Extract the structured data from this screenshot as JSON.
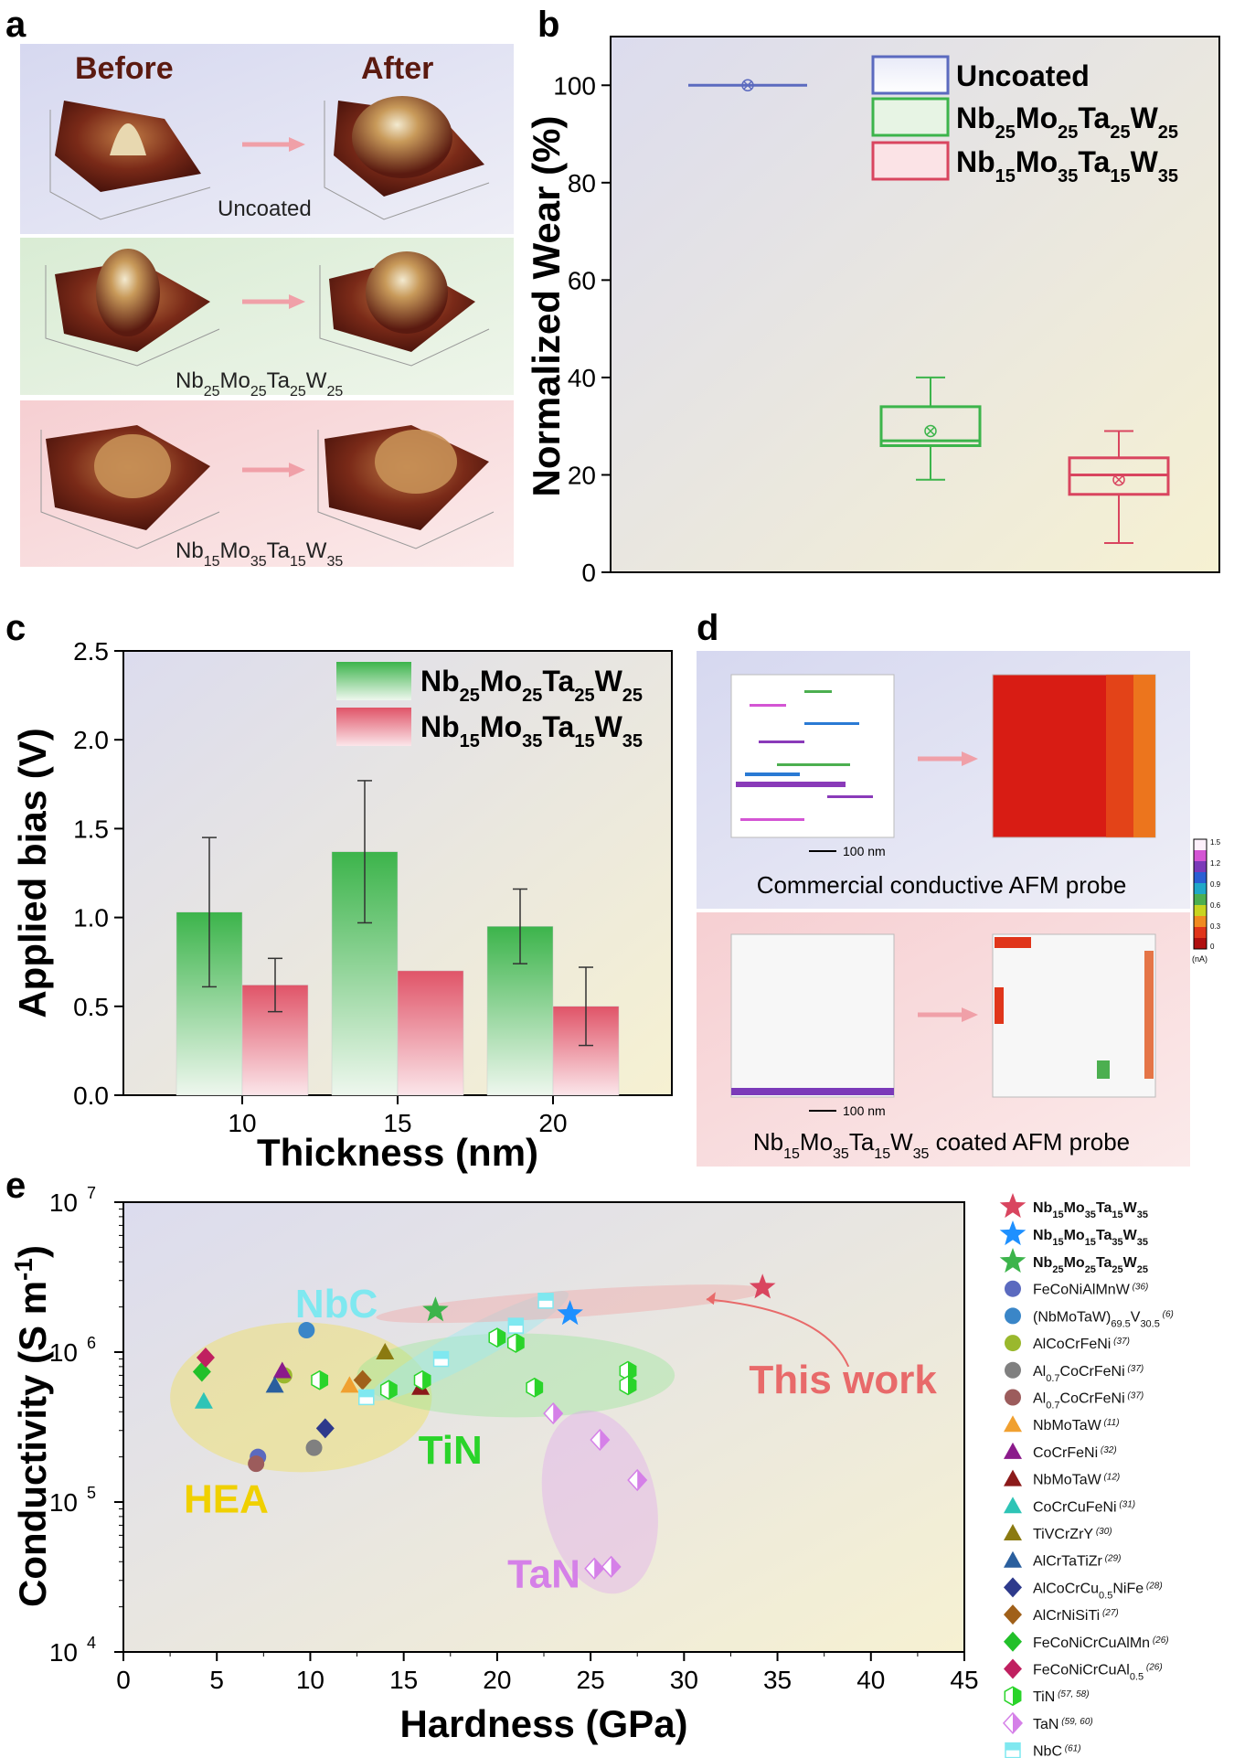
{
  "panels": {
    "a": {
      "label": "a",
      "before": "Before",
      "after": "After",
      "rows": [
        {
          "name": "Uncoated",
          "base": "Uncoated"
        },
        {
          "name": "Nb25Mo25Ta25W25",
          "base": "Nb",
          "parts": [
            [
              "25",
              "Mo"
            ],
            [
              "25",
              "Ta"
            ],
            [
              "25",
              "W"
            ],
            [
              "25",
              ""
            ]
          ]
        },
        {
          "name": "Nb15Mo35Ta15W35",
          "base": "Nb",
          "parts": [
            [
              "15",
              "Mo"
            ],
            [
              "35",
              "Ta"
            ],
            [
              "15",
              "W"
            ],
            [
              "35",
              ""
            ]
          ]
        }
      ]
    },
    "b": {
      "label": "b"
    },
    "c": {
      "label": "c"
    },
    "d": {
      "label": "d",
      "caption_top": "Commercial conductive AFM probe",
      "caption_bottom": "Nb15Mo35Ta15W35 coated AFM probe",
      "scale": "100 nm",
      "colorbar_ticks": [
        "1.5",
        "1.2",
        "0.9",
        "0.6",
        "0.3",
        "0"
      ],
      "colorbar_unit": "(nA)"
    },
    "e": {
      "label": "e"
    }
  },
  "chart_data": [
    {
      "id": "b",
      "type": "box",
      "title": "",
      "xlabel": "",
      "ylabel": "Normalized Wear (%)",
      "ylim": [
        0,
        110
      ],
      "yticks": [
        "0",
        "20",
        "40",
        "60",
        "80",
        "100"
      ],
      "series": [
        {
          "name": "Uncoated",
          "color": "#5b6abf",
          "min": 100,
          "q1": 100,
          "median": 100,
          "q3": 100,
          "max": 100,
          "mean": 100
        },
        {
          "name": "Nb25Mo25Ta25W25",
          "color": "#3cb44b",
          "min": 19,
          "q1": 26,
          "median": 27,
          "q3": 34,
          "max": 40,
          "mean": 29
        },
        {
          "name": "Nb15Mo35Ta15W35",
          "color": "#d9455f",
          "min": 6,
          "q1": 16,
          "median": 20,
          "q3": 23.5,
          "max": 29,
          "mean": 19
        }
      ],
      "legend": [
        "Uncoated",
        "Nb25Mo25Ta25W25",
        "Nb15Mo35Ta15W35"
      ]
    },
    {
      "id": "c",
      "type": "bar",
      "title": "",
      "xlabel": "Thickness (nm)",
      "ylabel": "Applied bias (V)",
      "ylim": [
        0,
        2.5
      ],
      "yticks": [
        "0.0",
        "0.5",
        "1.0",
        "1.5",
        "2.0",
        "2.5"
      ],
      "categories": [
        "10",
        "15",
        "20"
      ],
      "series": [
        {
          "name": "Nb25Mo25Ta25W25",
          "color": "#3cb44b",
          "values": [
            1.03,
            1.37,
            0.95
          ],
          "err_low": [
            0.61,
            0.97,
            0.74
          ],
          "err_high": [
            1.45,
            1.77,
            1.16
          ]
        },
        {
          "name": "Nb15Mo35Ta15W35",
          "color": "#e05468",
          "values": [
            0.62,
            0.7,
            0.5
          ],
          "err_low": [
            0.47,
            null,
            0.28
          ],
          "err_high": [
            0.77,
            null,
            0.72
          ]
        }
      ]
    },
    {
      "id": "e",
      "type": "scatter",
      "title": "",
      "xlabel": "Hardness (GPa)",
      "ylabel": "Conductivity (S m-1)",
      "xlim": [
        0,
        45
      ],
      "ylim_log10": [
        4,
        7
      ],
      "xticks": [
        "0",
        "5",
        "10",
        "15",
        "20",
        "25",
        "30",
        "35",
        "40",
        "45"
      ],
      "yticks": [
        [
          "10",
          "4"
        ],
        [
          "10",
          "5"
        ],
        [
          "10",
          "6"
        ],
        [
          "10",
          "7"
        ]
      ],
      "groups": [
        {
          "label": "HEA",
          "color": "#f0d000"
        },
        {
          "label": "NbC",
          "color": "#7fe8f0"
        },
        {
          "label": "TiN",
          "color": "#2ad42a"
        },
        {
          "label": "TaN",
          "color": "#d580e8"
        }
      ],
      "annotation": "This work",
      "series": [
        {
          "name": "Nb15Mo35Ta15W35",
          "marker": "star",
          "color": "#d9455f",
          "points": [
            [
              34.2,
              2700000
            ]
          ]
        },
        {
          "name": "Nb15Mo15Ta35W35",
          "marker": "star",
          "color": "#1e90ff",
          "points": [
            [
              23.9,
              1800000
            ]
          ]
        },
        {
          "name": "Nb25Mo25Ta25W25",
          "marker": "star",
          "color": "#3cb44b",
          "points": [
            [
              16.7,
              1900000
            ]
          ]
        },
        {
          "name": "FeCoNiAlMnW",
          "ref": "(36)",
          "marker": "circle",
          "color": "#5b6abf",
          "points": [
            [
              7.2,
              200000
            ]
          ]
        },
        {
          "name": "(NbMoTaW)69.5V30.5",
          "ref": "(6)",
          "marker": "circle",
          "color": "#3a86c8",
          "points": [
            [
              9.8,
              1400000
            ]
          ]
        },
        {
          "name": "AlCoCrFeNi",
          "ref": "(37)",
          "marker": "circle",
          "color": "#9ab82d",
          "points": [
            [
              8.6,
              700000
            ]
          ]
        },
        {
          "name": "Al0.7CoCrFeNi",
          "ref": "(37)",
          "marker": "circle",
          "color": "#808080",
          "points": [
            [
              10.2,
              230000
            ]
          ]
        },
        {
          "name": "Al0.7CoCrFeNi",
          "ref": "(37)",
          "marker": "circle",
          "color": "#9c5c5c",
          "points": [
            [
              7.1,
              180000
            ]
          ]
        },
        {
          "name": "NbMoTaW",
          "ref": "(11)",
          "marker": "triangle",
          "color": "#f0a030",
          "points": [
            [
              12.1,
              600000
            ]
          ]
        },
        {
          "name": "CoCrFeNi",
          "ref": "(32)",
          "marker": "triangle",
          "color": "#8b1a8b",
          "points": [
            [
              8.5,
              750000
            ]
          ]
        },
        {
          "name": "NbMoTaW",
          "ref": "(12)",
          "marker": "triangle",
          "color": "#8b1a1a",
          "points": [
            [
              15.9,
              580000
            ]
          ]
        },
        {
          "name": "CoCrCuFeNi",
          "ref": "(31)",
          "marker": "triangle",
          "color": "#2ec4b6",
          "points": [
            [
              4.3,
              470000
            ]
          ]
        },
        {
          "name": "TiVCrZrY",
          "ref": "(30)",
          "marker": "triangle",
          "color": "#8b7a10",
          "points": [
            [
              14.0,
              1000000
            ]
          ]
        },
        {
          "name": "AlCrTaTiZr",
          "ref": "(29)",
          "marker": "triangle",
          "color": "#2a5f9e",
          "points": [
            [
              8.1,
              600000
            ]
          ]
        },
        {
          "name": "AlCoCrCu0.5NiFe",
          "ref": "(28)",
          "marker": "diamond",
          "color": "#2e3a8c",
          "points": [
            [
              10.8,
              310000
            ]
          ]
        },
        {
          "name": "AlCrNiSiTi",
          "ref": "(27)",
          "marker": "diamond",
          "color": "#a0601a",
          "points": [
            [
              12.8,
              650000
            ]
          ]
        },
        {
          "name": "FeCoNiCrCuAlMn",
          "ref": "(26)",
          "marker": "diamond",
          "color": "#22c02a",
          "points": [
            [
              4.2,
              740000
            ]
          ]
        },
        {
          "name": "FeCoNiCrCuAl0.5",
          "ref": "(26)",
          "marker": "diamond",
          "color": "#c02060",
          "points": [
            [
              4.4,
              920000
            ]
          ]
        },
        {
          "name": "TiN",
          "ref": "(57, 58)",
          "marker": "hexagon",
          "color": "#2ad42a",
          "points": [
            [
              10.5,
              650000
            ],
            [
              14.2,
              560000
            ],
            [
              16.0,
              650000
            ],
            [
              20.0,
              1250000
            ],
            [
              21.0,
              1150000
            ],
            [
              22.0,
              580000
            ],
            [
              27.0,
              750000
            ],
            [
              27.0,
              600000
            ]
          ]
        },
        {
          "name": "TaN",
          "ref": "(59, 60)",
          "marker": "diamond-half",
          "color": "#d580e8",
          "points": [
            [
              23.0,
              390000
            ],
            [
              25.5,
              260000
            ],
            [
              27.5,
              140000
            ],
            [
              25.2,
              36000
            ],
            [
              26.1,
              37000
            ]
          ]
        },
        {
          "name": "NbC",
          "ref": "(61)",
          "marker": "square-half",
          "color": "#7fe8f0",
          "points": [
            [
              13.0,
              500000
            ],
            [
              17.0,
              900000
            ],
            [
              21.0,
              1500000
            ],
            [
              22.6,
              2200000
            ]
          ]
        }
      ]
    }
  ]
}
